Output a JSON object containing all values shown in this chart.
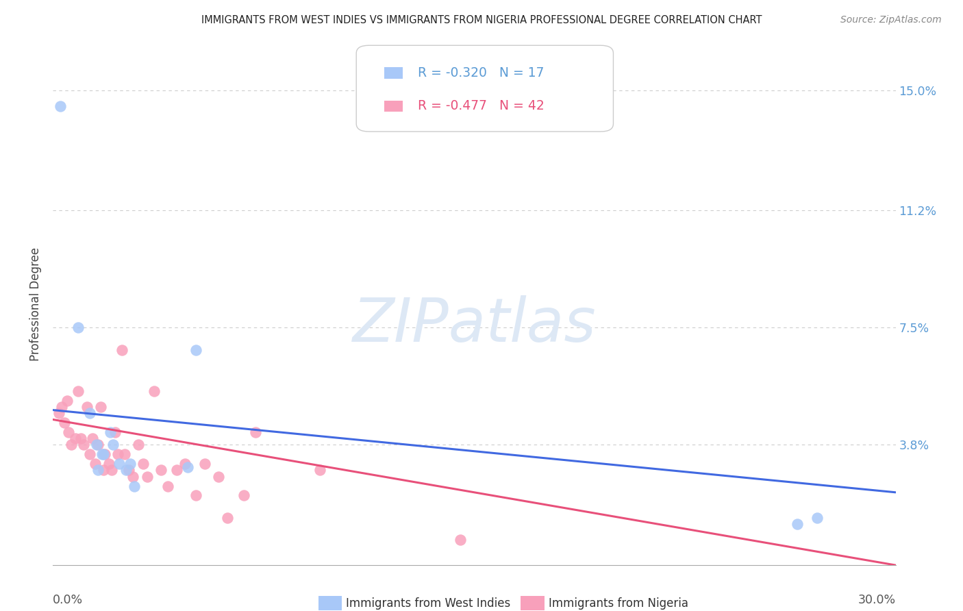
{
  "title": "IMMIGRANTS FROM WEST INDIES VS IMMIGRANTS FROM NIGERIA PROFESSIONAL DEGREE CORRELATION CHART",
  "source": "Source: ZipAtlas.com",
  "ylabel": "Professional Degree",
  "ytick_values": [
    3.8,
    7.5,
    11.2,
    15.0
  ],
  "xlim": [
    0.0,
    30.0
  ],
  "ylim": [
    0.0,
    16.5
  ],
  "legend_label1": "Immigrants from West Indies",
  "legend_label2": "Immigrants from Nigeria",
  "R_west_indies": -0.32,
  "N_west_indies": 17,
  "R_nigeria": -0.477,
  "N_nigeria": 42,
  "color_west_indies": "#a8c8f8",
  "color_nigeria": "#f8a0bb",
  "color_line_west_indies": "#4169e1",
  "color_line_nigeria": "#e8507a",
  "watermark_color": "#dde8f5",
  "west_indies_x": [
    0.25,
    0.9,
    1.3,
    1.55,
    1.75,
    2.05,
    2.15,
    2.35,
    2.6,
    2.75,
    2.9,
    1.6,
    1.8,
    4.8,
    5.1,
    26.5,
    27.2
  ],
  "west_indies_y": [
    14.5,
    7.5,
    4.8,
    3.8,
    3.5,
    4.2,
    3.8,
    3.2,
    3.0,
    3.2,
    2.5,
    3.0,
    3.5,
    3.1,
    6.8,
    1.3,
    1.5
  ],
  "nigeria_x": [
    0.2,
    0.3,
    0.4,
    0.5,
    0.55,
    0.65,
    0.8,
    0.9,
    1.0,
    1.1,
    1.2,
    1.3,
    1.4,
    1.5,
    1.6,
    1.7,
    1.8,
    1.85,
    2.0,
    2.1,
    2.2,
    2.3,
    2.45,
    2.55,
    2.7,
    2.85,
    3.05,
    3.2,
    3.35,
    3.6,
    3.85,
    4.1,
    4.4,
    4.7,
    5.1,
    5.4,
    5.9,
    6.2,
    6.8,
    7.2,
    9.5,
    14.5
  ],
  "nigeria_y": [
    4.8,
    5.0,
    4.5,
    5.2,
    4.2,
    3.8,
    4.0,
    5.5,
    4.0,
    3.8,
    5.0,
    3.5,
    4.0,
    3.2,
    3.8,
    5.0,
    3.0,
    3.5,
    3.2,
    3.0,
    4.2,
    3.5,
    6.8,
    3.5,
    3.0,
    2.8,
    3.8,
    3.2,
    2.8,
    5.5,
    3.0,
    2.5,
    3.0,
    3.2,
    2.2,
    3.2,
    2.8,
    1.5,
    2.2,
    4.2,
    3.0,
    0.8
  ],
  "line_wi_x0": 0.0,
  "line_wi_y0": 4.9,
  "line_wi_x1": 30.0,
  "line_wi_y1": 2.3,
  "line_ng_x0": 0.0,
  "line_ng_y0": 4.6,
  "line_ng_x1": 30.0,
  "line_ng_y1": 0.0
}
